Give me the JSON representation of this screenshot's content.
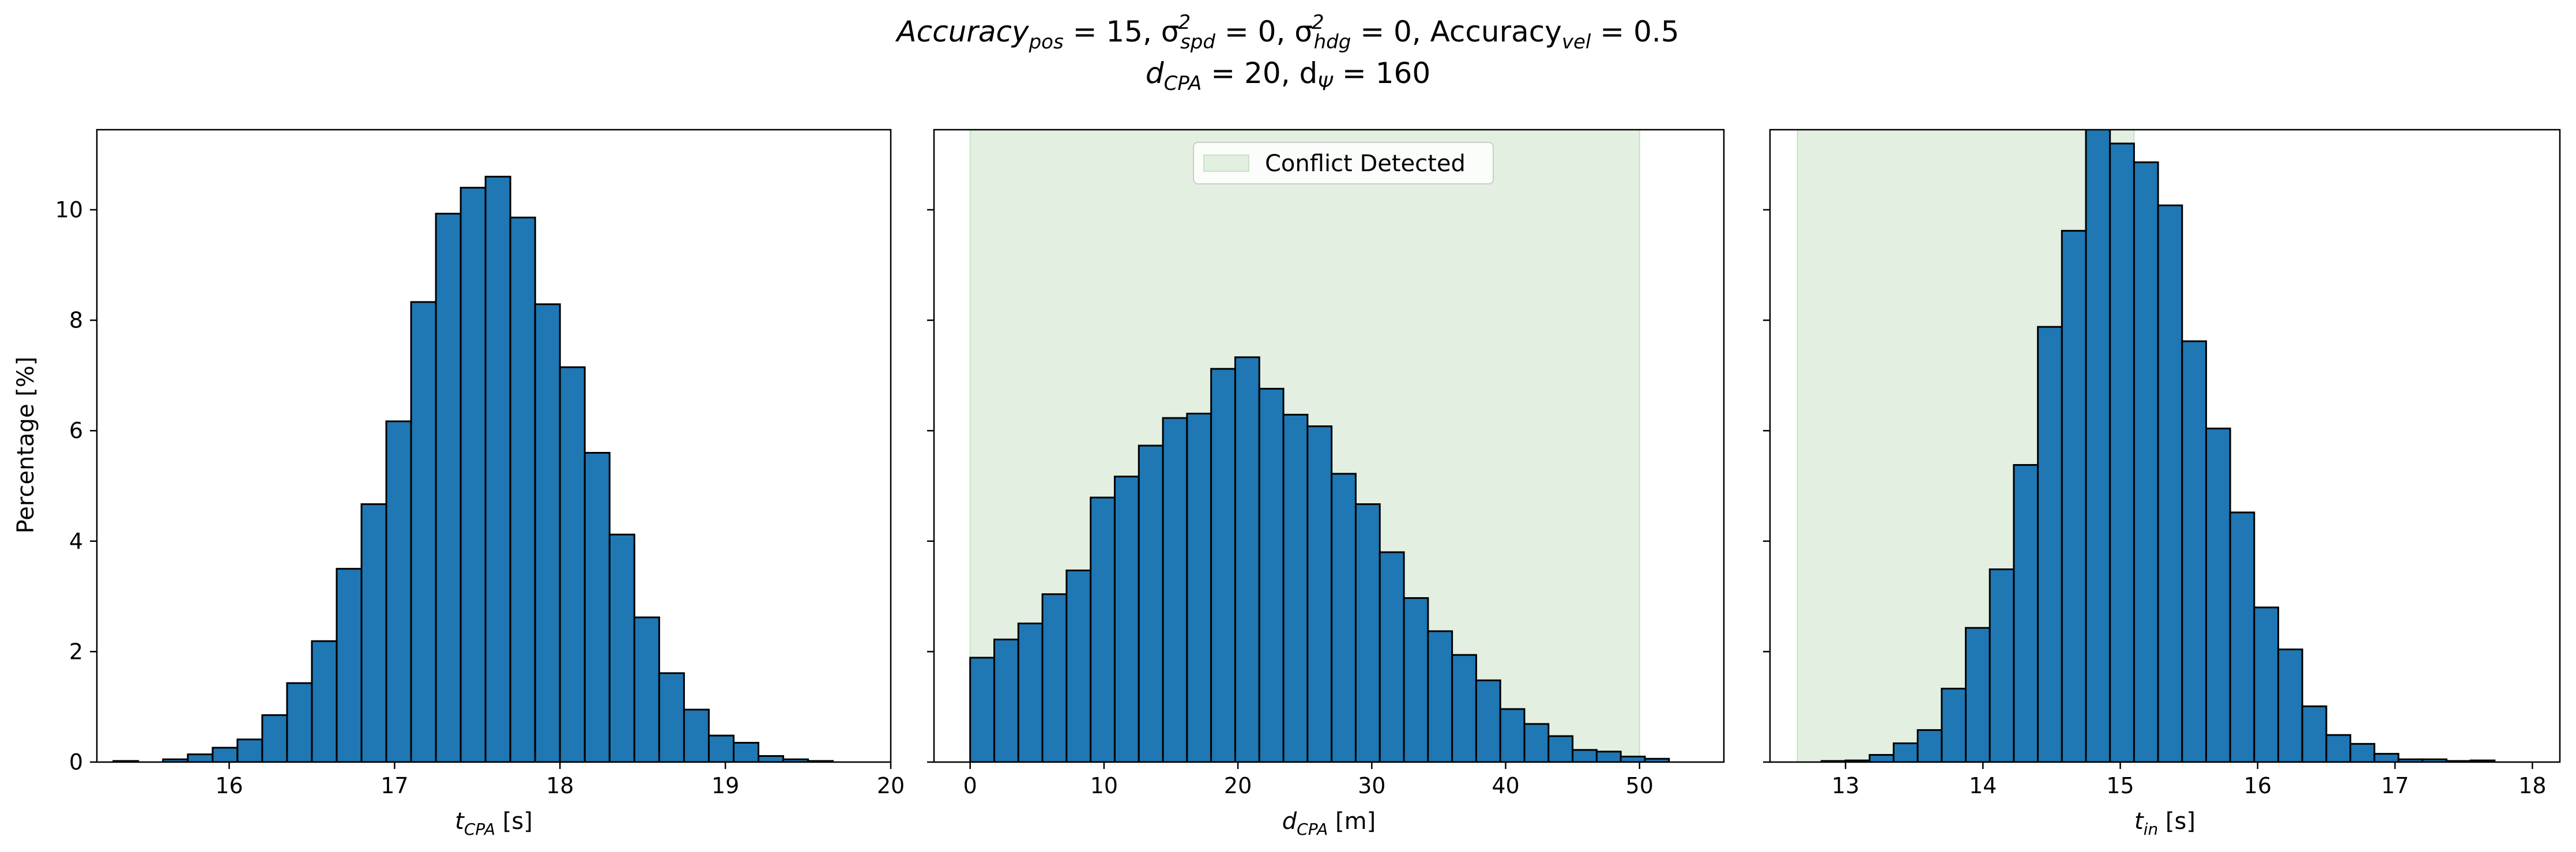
{
  "figure": {
    "title_line1": {
      "prefix": "Accuracy",
      "prefix_sub": "pos",
      "a": " = 15, σ",
      "a_sub": "spd",
      "a_sup": "2",
      "b": " = 0, σ",
      "b_sub": "hdg",
      "b_sup": "2",
      "c": " = 0, Accuracy",
      "c_sub": "vel",
      "d": " = 0.5"
    },
    "title_line2": {
      "a": "d",
      "a_sub": "CPA",
      "b": " = 20, d",
      "b_sub": "Ψ",
      "c": " = 160"
    },
    "ylabel": "Percentage [%]"
  },
  "colors": {
    "bar": "#1f77b4",
    "edge": "#000000",
    "shade": "#e3f0e1",
    "shade_edge": "#c6e2c3"
  },
  "chart_data": [
    {
      "type": "bar",
      "xlabel": {
        "main": "t",
        "sub": "CPA",
        "unit": " [s]"
      },
      "xlim": [
        15.2,
        20.0
      ],
      "ylim": [
        0,
        11.45
      ],
      "xticks": [
        16,
        17,
        18,
        19,
        20
      ],
      "yticks": [
        0,
        2,
        4,
        6,
        8,
        10
      ],
      "bin_start": 15.3,
      "bin_width": 0.15,
      "values": [
        0.02,
        0.0,
        0.05,
        0.14,
        0.26,
        0.41,
        0.85,
        1.43,
        2.19,
        3.5,
        4.67,
        6.17,
        8.33,
        9.93,
        10.4,
        10.6,
        9.86,
        8.29,
        7.15,
        5.6,
        4.12,
        2.62,
        1.61,
        0.95,
        0.48,
        0.35,
        0.11,
        0.05,
        0.02
      ],
      "shade": null,
      "legend": null
    },
    {
      "type": "bar",
      "xlabel": {
        "main": "d",
        "sub": "CPA",
        "unit": " [m]"
      },
      "xlim": [
        -2.7,
        56.3
      ],
      "ylim": [
        0,
        11.45
      ],
      "xticks": [
        0,
        10,
        20,
        30,
        40,
        50
      ],
      "yticks": [
        0,
        2,
        4,
        6,
        8,
        10
      ],
      "bin_start": 0.0,
      "bin_width": 1.8,
      "values": [
        1.89,
        2.22,
        2.51,
        3.04,
        3.47,
        4.79,
        5.17,
        5.73,
        6.23,
        6.31,
        7.12,
        7.33,
        6.76,
        6.29,
        6.08,
        5.22,
        4.67,
        3.8,
        2.97,
        2.37,
        1.94,
        1.48,
        0.96,
        0.69,
        0.47,
        0.22,
        0.19,
        0.1,
        0.06
      ],
      "shade": [
        0,
        50
      ],
      "legend": "Conflict Detected"
    },
    {
      "type": "bar",
      "xlabel": {
        "main": "t",
        "sub": "in",
        "unit": " [s]"
      },
      "xlim": [
        12.45,
        18.2
      ],
      "ylim": [
        0,
        11.45
      ],
      "xticks": [
        13,
        14,
        15,
        16,
        17,
        18
      ],
      "yticks": [
        0,
        2,
        4,
        6,
        8,
        10
      ],
      "bin_start": 12.65,
      "bin_width": 0.175,
      "values": [
        0.0,
        0.02,
        0.03,
        0.13,
        0.34,
        0.58,
        1.33,
        2.43,
        3.49,
        5.38,
        7.88,
        9.62,
        11.48,
        11.2,
        10.86,
        10.08,
        7.62,
        6.04,
        4.52,
        2.8,
        2.04,
        1.01,
        0.49,
        0.33,
        0.15,
        0.05,
        0.05,
        0.02,
        0.03
      ],
      "shade": [
        12.65,
        15.1
      ],
      "legend": null
    }
  ]
}
